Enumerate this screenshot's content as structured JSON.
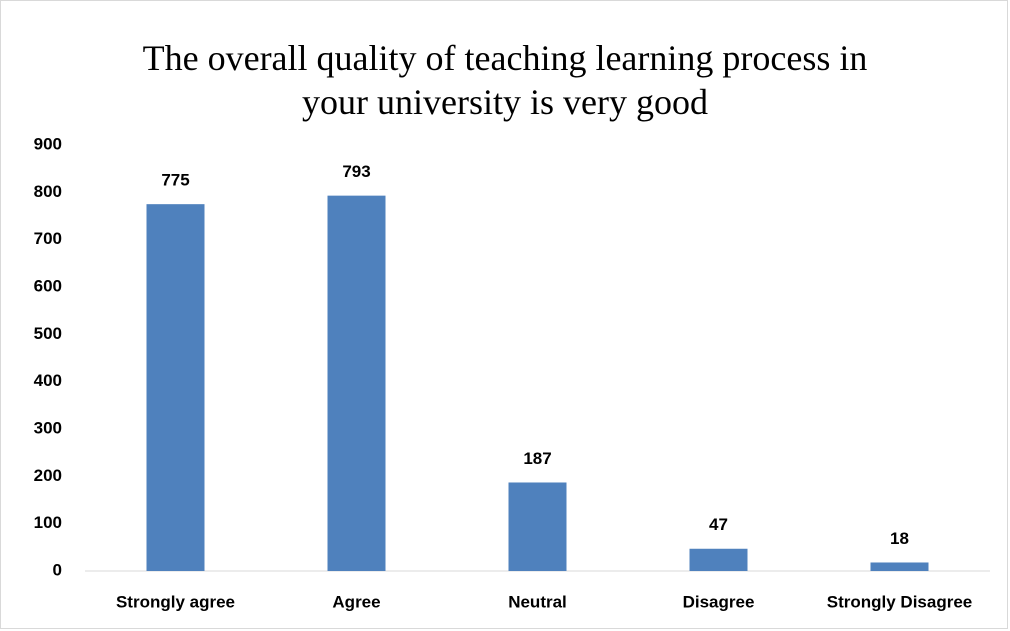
{
  "chart_data": {
    "type": "bar",
    "title": "The overall quality of teaching learning process in your university is very good",
    "categories": [
      "Strongly agree",
      "Agree",
      "Neutral",
      "Disagree",
      "Strongly Disagree"
    ],
    "values": [
      775,
      793,
      187,
      47,
      18
    ],
    "color": "#4f81bd",
    "ylim": [
      0,
      900
    ],
    "yticks": [
      0,
      100,
      200,
      300,
      400,
      500,
      600,
      700,
      800,
      900
    ],
    "grid": false
  }
}
